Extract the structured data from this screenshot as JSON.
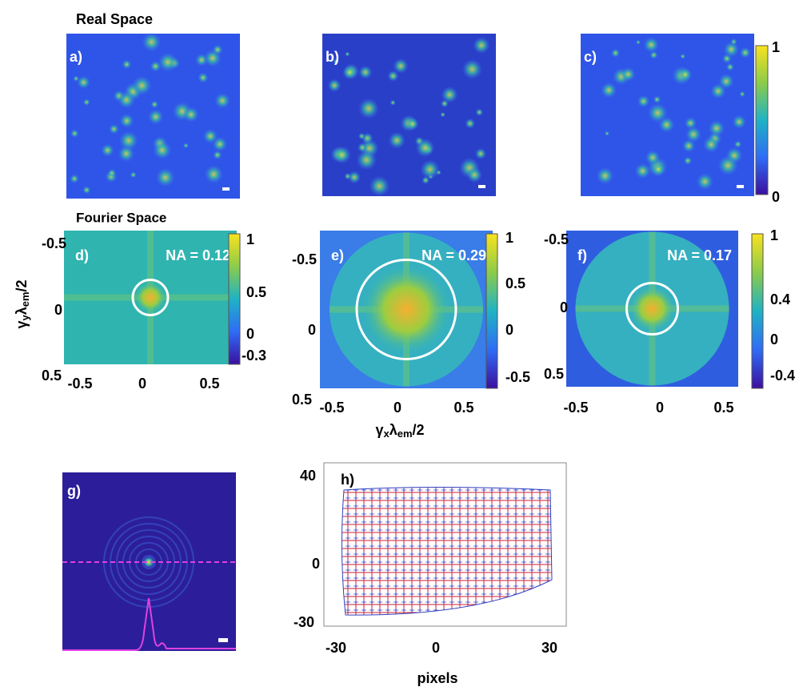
{
  "headings": {
    "real_space": "Real Space",
    "fourier_space": "Fourier Space"
  },
  "real_panels": [
    {
      "label": "a)"
    },
    {
      "label": "b)"
    },
    {
      "label": "c)",
      "colorbar": [
        "1",
        "0"
      ]
    }
  ],
  "fourier_panels": [
    {
      "label": "d)",
      "na": "NA = 0.12",
      "colorbar": [
        "1",
        "0.5",
        "0",
        "-0.3"
      ],
      "yticks": [
        "-0.5",
        "0",
        "0.5"
      ],
      "xticks": [
        "-0.5",
        "0",
        "0.5"
      ]
    },
    {
      "label": "e)",
      "na": "NA = 0.29",
      "colorbar": [
        "1",
        "0.5",
        "0",
        "-0.5"
      ],
      "yticks": [
        "-0.5",
        "0",
        "0.5"
      ],
      "xticks": [
        "-0.5",
        "0",
        "0.5"
      ]
    },
    {
      "label": "f)",
      "na": "NA = 0.17",
      "colorbar": [
        "1",
        "0.4",
        "0",
        "-0.4"
      ],
      "yticks": [
        "-0.5",
        "0",
        "0.5"
      ],
      "xticks": [
        "-0.5",
        "0",
        "0.5"
      ]
    }
  ],
  "y_axis_label": [
    "γ",
    "y",
    "λ",
    "em",
    "/2"
  ],
  "x_axis_label": [
    "γ",
    "x",
    "λ",
    "em",
    "/2"
  ],
  "psf_panel": {
    "label": "g)"
  },
  "distortion_panel": {
    "label": "h)",
    "yticks": [
      "40",
      "0",
      "-30"
    ],
    "xticks": [
      "-30",
      "0",
      "30"
    ],
    "xlabel": "pixels"
  }
}
